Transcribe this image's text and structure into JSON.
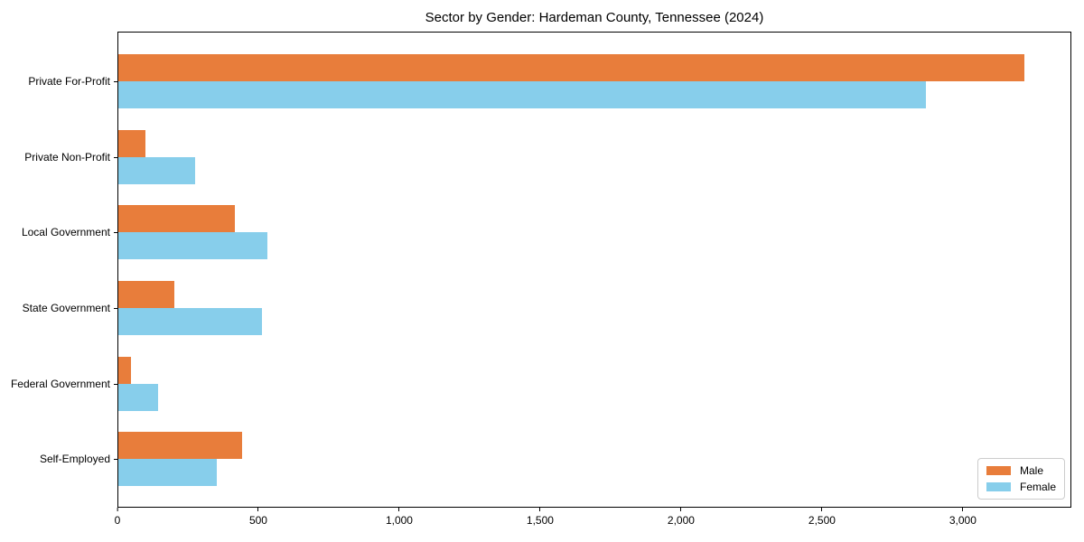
{
  "chart_data": {
    "type": "bar",
    "orientation": "horizontal",
    "title": "Sector by Gender: Hardeman County, Tennessee (2024)",
    "categories": [
      "Private For-Profit",
      "Private Non-Profit",
      "Local Government",
      "State Government",
      "Federal Government",
      "Self-Employed"
    ],
    "series": [
      {
        "name": "Male",
        "color": "#E87D3B",
        "values": [
          3220,
          97,
          415,
          200,
          46,
          440
        ]
      },
      {
        "name": "Female",
        "color": "#87CEEB",
        "values": [
          2872,
          272,
          530,
          511,
          140,
          350
        ]
      }
    ],
    "xlabel": "",
    "ylabel": "",
    "xlim": [
      0,
      3385
    ],
    "x_ticks": [
      0,
      500,
      1000,
      1500,
      2000,
      2500,
      3000
    ],
    "x_tick_labels": [
      "0",
      "500",
      "1,000",
      "1,500",
      "2,000",
      "2,500",
      "3,000"
    ],
    "grid": false,
    "legend_position": "lower right"
  },
  "legend": {
    "items": [
      {
        "label": "Male",
        "color": "#E87D3B"
      },
      {
        "label": "Female",
        "color": "#87CEEB"
      }
    ]
  },
  "colors": {
    "male": "#E87D3B",
    "female": "#87CEEB",
    "axis": "#000000",
    "legend_border": "#cccccc",
    "background": "#ffffff"
  }
}
